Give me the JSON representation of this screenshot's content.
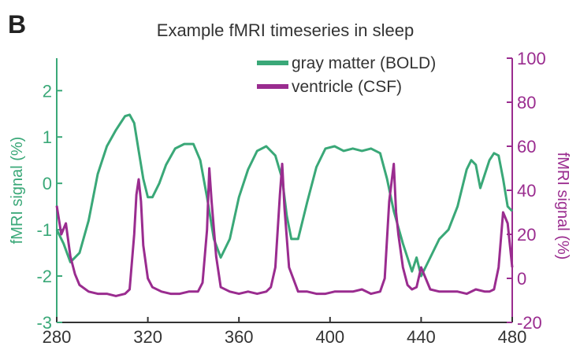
{
  "panel_label": "B",
  "chart_data": {
    "type": "line",
    "title": "Example fMRI timeseries in sleep",
    "xlabel": "",
    "xlim": [
      280,
      480
    ],
    "x_ticks": [
      280,
      320,
      360,
      400,
      440,
      480
    ],
    "left_axis": {
      "label": "fMRI signal (%)",
      "ylim": [
        -3,
        2.7
      ],
      "ticks": [
        -3,
        -2,
        -1,
        0,
        1,
        2
      ],
      "color": "#3aa878"
    },
    "right_axis": {
      "label": "fMRI signal (%)",
      "ylim": [
        -20,
        100
      ],
      "ticks": [
        -20,
        0,
        20,
        40,
        60,
        80,
        100
      ],
      "color": "#9a2c8f"
    },
    "legend": {
      "placement": "top-right"
    },
    "series": [
      {
        "name": "gray matter (BOLD)",
        "axis": "left",
        "color": "#3aa878",
        "x": [
          280,
          283,
          286,
          290,
          294,
          298,
          302,
          306,
          308,
          310,
          312,
          314,
          316,
          318,
          320,
          322,
          325,
          328,
          332,
          336,
          340,
          343,
          346,
          349,
          352,
          356,
          360,
          364,
          368,
          372,
          376,
          379,
          381,
          383,
          386,
          390,
          394,
          398,
          402,
          406,
          410,
          414,
          418,
          422,
          425,
          428,
          432,
          436,
          438,
          440,
          444,
          448,
          452,
          456,
          460,
          462,
          464,
          466,
          468,
          470,
          472,
          474,
          476,
          478,
          480
        ],
        "y": [
          -1.0,
          -1.3,
          -1.7,
          -1.5,
          -0.8,
          0.2,
          0.8,
          1.15,
          1.3,
          1.45,
          1.48,
          1.3,
          0.7,
          0.1,
          -0.3,
          -0.3,
          0.0,
          0.4,
          0.75,
          0.85,
          0.85,
          0.5,
          -0.3,
          -1.2,
          -1.6,
          -1.2,
          -0.3,
          0.3,
          0.7,
          0.8,
          0.6,
          0.1,
          -0.7,
          -1.2,
          -1.2,
          -0.4,
          0.35,
          0.75,
          0.8,
          0.7,
          0.75,
          0.7,
          0.75,
          0.65,
          0.1,
          -0.6,
          -1.3,
          -1.9,
          -1.6,
          -2.0,
          -1.6,
          -1.2,
          -1.0,
          -0.5,
          0.3,
          0.5,
          0.4,
          -0.1,
          0.2,
          0.5,
          0.65,
          0.6,
          0.1,
          -0.5,
          -0.6
        ]
      },
      {
        "name": "ventricle (CSF)",
        "axis": "right",
        "color": "#9a2c8f",
        "x": [
          280,
          282,
          284,
          286,
          288,
          290,
          294,
          298,
          302,
          306,
          310,
          312,
          314,
          315,
          316,
          317,
          318,
          320,
          322,
          326,
          330,
          334,
          338,
          342,
          344,
          346,
          347,
          348,
          350,
          352,
          356,
          360,
          364,
          368,
          372,
          374,
          376,
          378,
          379,
          380,
          382,
          386,
          390,
          394,
          398,
          402,
          406,
          410,
          414,
          418,
          422,
          424,
          426,
          428,
          429,
          430,
          432,
          434,
          436,
          438,
          440,
          442,
          444,
          448,
          452,
          456,
          460,
          464,
          468,
          470,
          472,
          474,
          476,
          478,
          480
        ],
        "y": [
          33,
          20,
          25,
          10,
          2,
          -3,
          -6,
          -7,
          -7,
          -8,
          -7,
          -5,
          20,
          38,
          45,
          35,
          15,
          0,
          -4,
          -6,
          -7,
          -7,
          -6,
          -6,
          -2,
          22,
          50,
          35,
          10,
          -4,
          -6,
          -7,
          -6,
          -7,
          -6,
          -4,
          5,
          38,
          52,
          32,
          5,
          -6,
          -6,
          -7,
          -7,
          -6,
          -6,
          -6,
          -5,
          -7,
          -6,
          0,
          35,
          52,
          30,
          20,
          5,
          -3,
          -5,
          -4,
          5,
          0,
          -5,
          -6,
          -6,
          -6,
          -7,
          -5,
          -6,
          -6,
          -5,
          5,
          30,
          25,
          5
        ]
      }
    ]
  }
}
